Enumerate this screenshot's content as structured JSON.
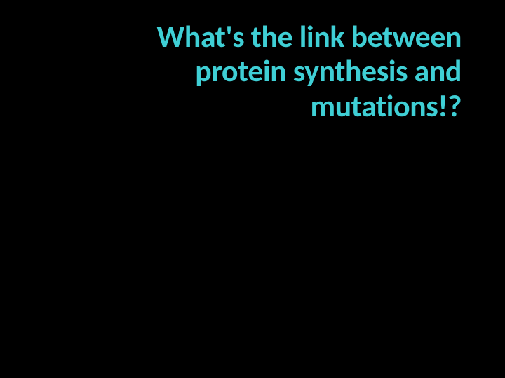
{
  "slide": {
    "title_line1": "What's the link between",
    "title_line2": "protein synthesis and",
    "title_line3": "mutations!?",
    "background_color": "#000000",
    "title_color": "#3fcfd5",
    "title_fontsize": 44,
    "title_fontweight": 700,
    "title_align": "right",
    "title_font_family": "Calibri"
  }
}
